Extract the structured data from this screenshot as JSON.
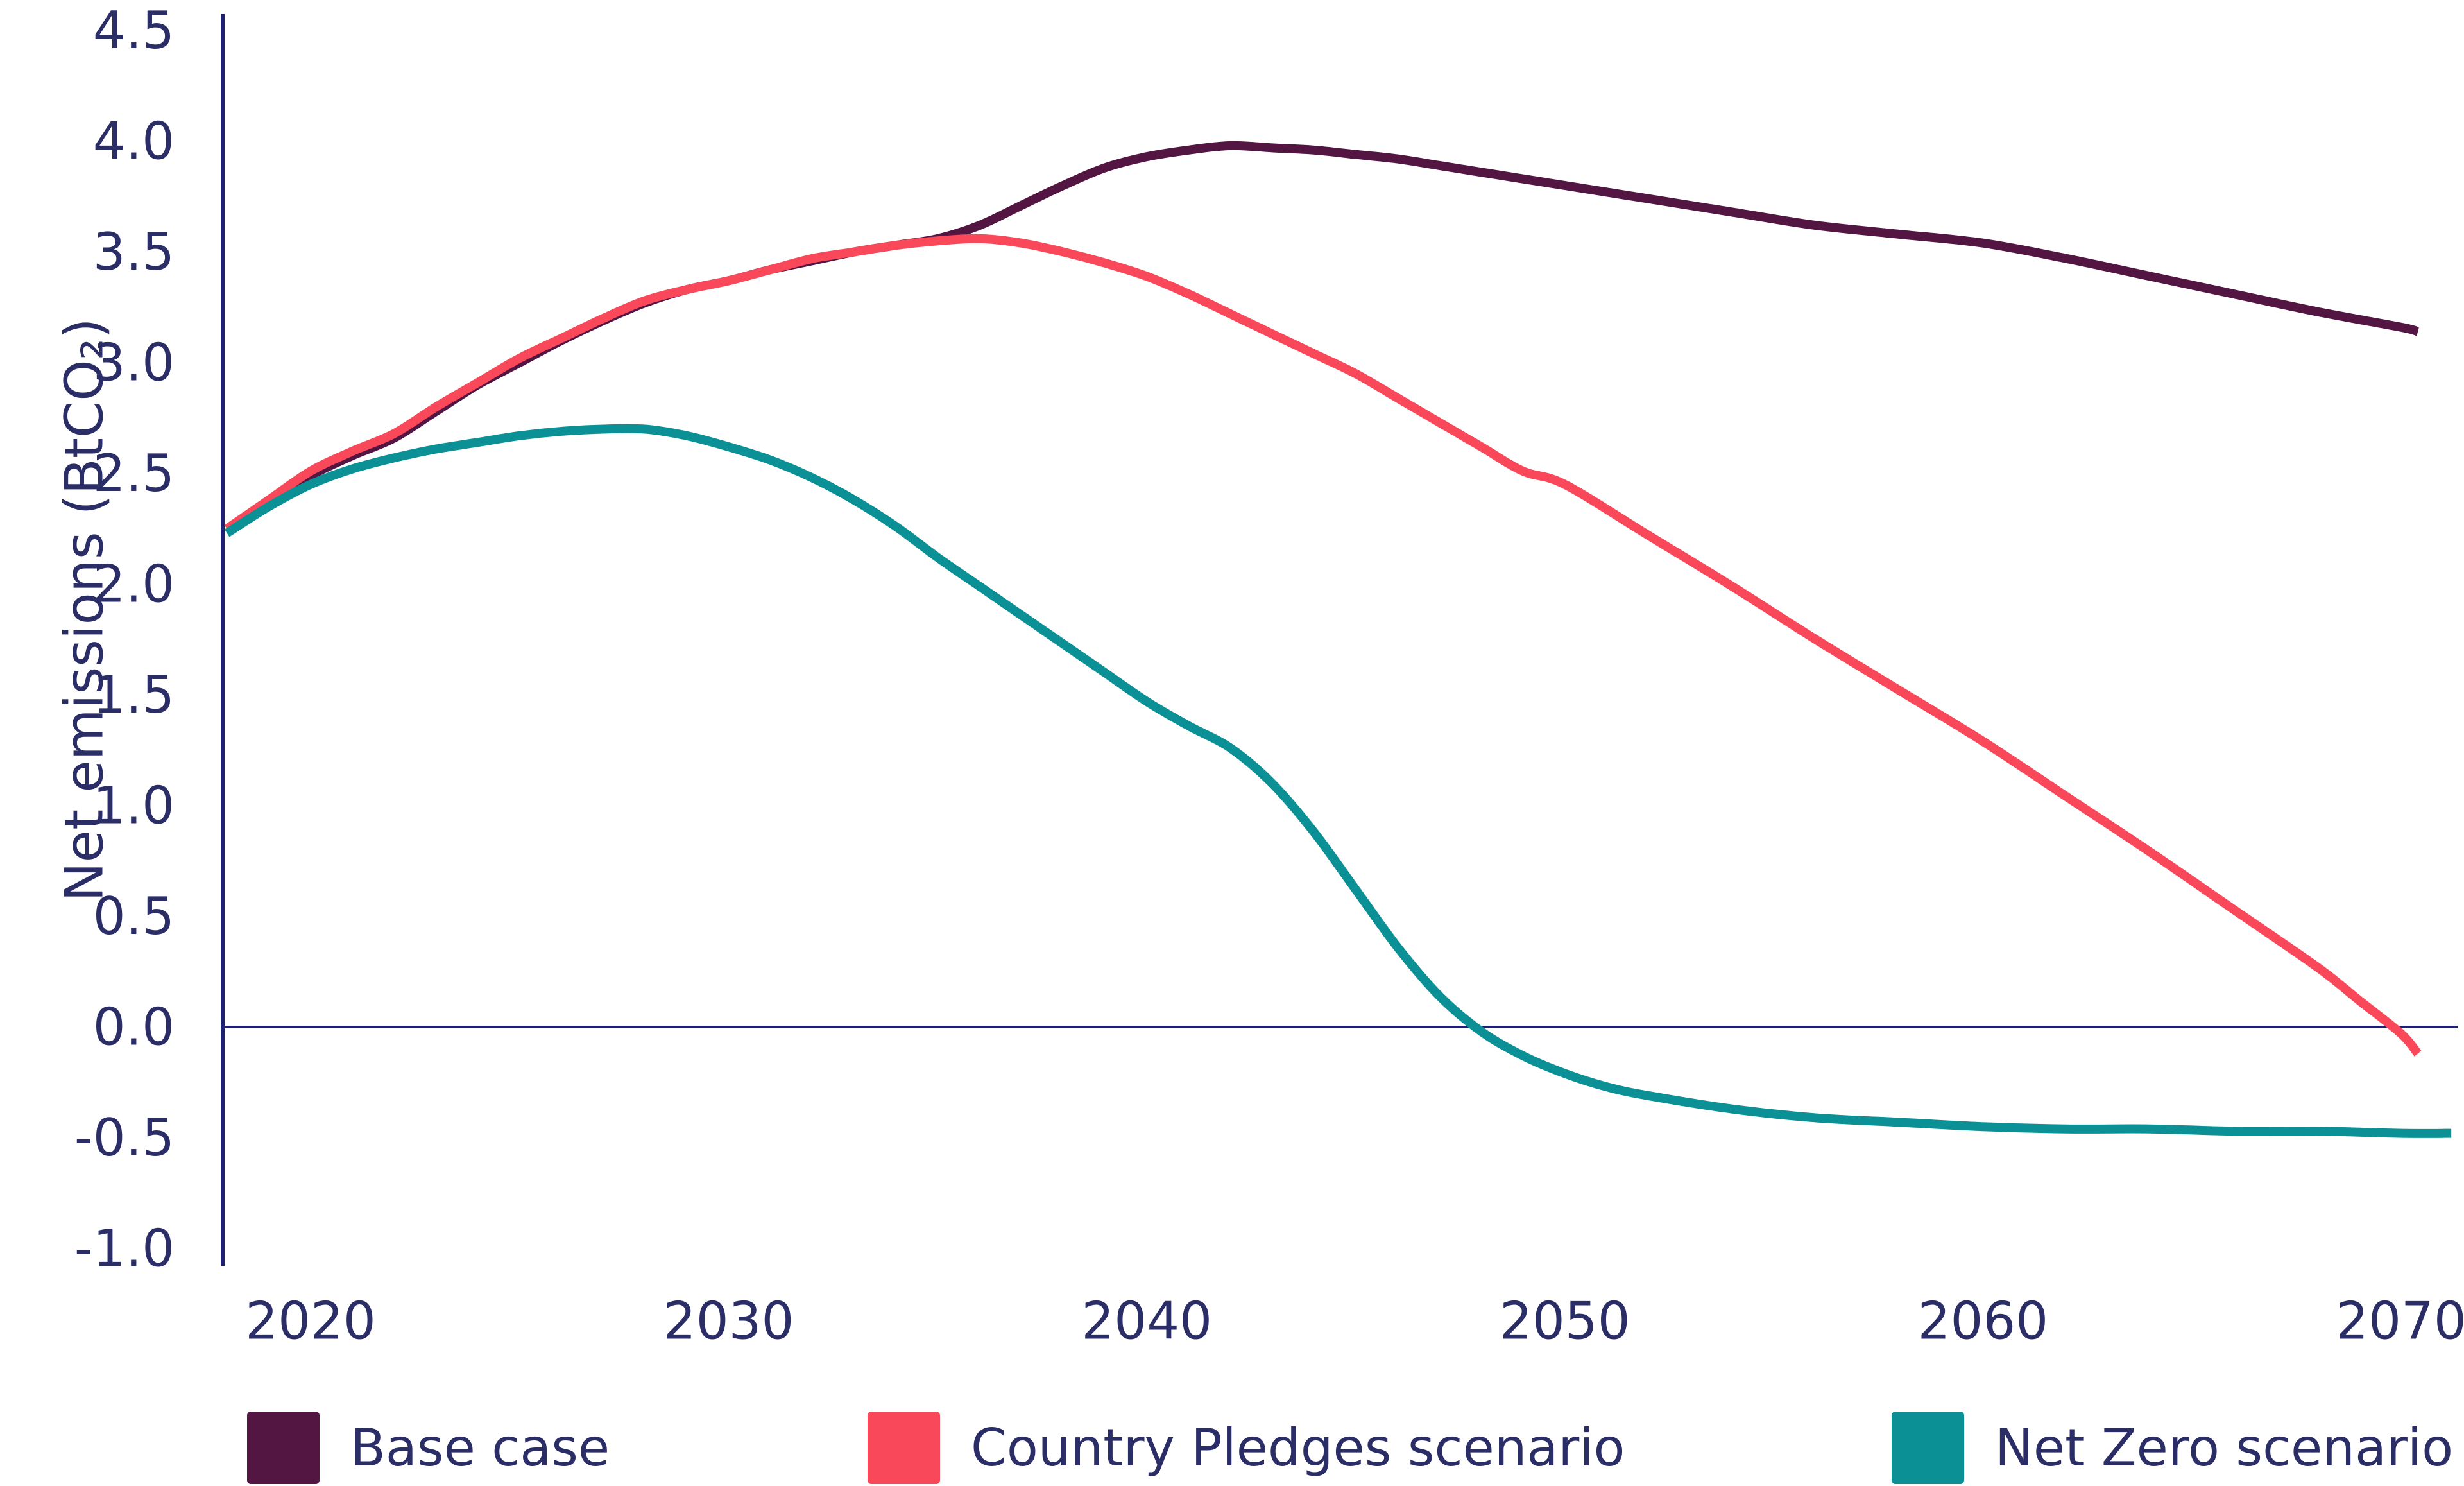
{
  "chart_data": {
    "type": "line",
    "title": "",
    "xlabel": "",
    "ylabel": "Net emissions (BtCO₂)",
    "ylim": [
      -1.0,
      4.5
    ],
    "xlim": [
      2017.9,
      2071.3
    ],
    "grid": false,
    "zero_line": true,
    "legend_position": "bottom",
    "axis_color": "#1e216e",
    "text_color": "#2b2d66",
    "y_ticks": [
      "4.5",
      "4.0",
      "3.5",
      "3.0",
      "2.5",
      "2.0",
      "1.5",
      "1.0",
      "0.5",
      "0.0",
      "-0.5",
      "-1.0"
    ],
    "x_ticks": [
      "2020",
      "2030",
      "2040",
      "2050",
      "2060",
      "2070"
    ],
    "series": [
      {
        "name": "Base case",
        "color": "#531542",
        "points": [
          [
            2018,
            2.25
          ],
          [
            2019,
            2.37
          ],
          [
            2020,
            2.49
          ],
          [
            2021,
            2.58
          ],
          [
            2022,
            2.66
          ],
          [
            2023,
            2.78
          ],
          [
            2024,
            2.9
          ],
          [
            2025,
            3.0
          ],
          [
            2026,
            3.1
          ],
          [
            2027,
            3.19
          ],
          [
            2028,
            3.27
          ],
          [
            2029,
            3.33
          ],
          [
            2030,
            3.37
          ],
          [
            2031,
            3.42
          ],
          [
            2032,
            3.46
          ],
          [
            2033,
            3.5
          ],
          [
            2034,
            3.53
          ],
          [
            2035,
            3.56
          ],
          [
            2036,
            3.62
          ],
          [
            2037,
            3.71
          ],
          [
            2038,
            3.8
          ],
          [
            2039,
            3.88
          ],
          [
            2040,
            3.93
          ],
          [
            2041,
            3.96
          ],
          [
            2042,
            3.98
          ],
          [
            2043,
            3.97
          ],
          [
            2044,
            3.96
          ],
          [
            2045,
            3.94
          ],
          [
            2046,
            3.92
          ],
          [
            2047,
            3.89
          ],
          [
            2048,
            3.86
          ],
          [
            2049,
            3.83
          ],
          [
            2050,
            3.8
          ],
          [
            2052,
            3.74
          ],
          [
            2054,
            3.68
          ],
          [
            2056,
            3.62
          ],
          [
            2058,
            3.58
          ],
          [
            2060,
            3.54
          ],
          [
            2062,
            3.47
          ],
          [
            2064,
            3.39
          ],
          [
            2066,
            3.31
          ],
          [
            2068,
            3.23
          ],
          [
            2070,
            3.16
          ],
          [
            2070.4,
            3.14
          ]
        ]
      },
      {
        "name": "Country Pledges scenario",
        "color": "#f8485a",
        "points": [
          [
            2018,
            2.25
          ],
          [
            2019,
            2.38
          ],
          [
            2020,
            2.51
          ],
          [
            2021,
            2.6
          ],
          [
            2022,
            2.68
          ],
          [
            2023,
            2.8
          ],
          [
            2024,
            2.91
          ],
          [
            2025,
            3.02
          ],
          [
            2026,
            3.11
          ],
          [
            2027,
            3.2
          ],
          [
            2028,
            3.28
          ],
          [
            2029,
            3.33
          ],
          [
            2030,
            3.37
          ],
          [
            2031,
            3.42
          ],
          [
            2032,
            3.47
          ],
          [
            2033,
            3.5
          ],
          [
            2034,
            3.53
          ],
          [
            2035,
            3.55
          ],
          [
            2036,
            3.56
          ],
          [
            2037,
            3.54
          ],
          [
            2038,
            3.5
          ],
          [
            2039,
            3.45
          ],
          [
            2040,
            3.39
          ],
          [
            2041,
            3.31
          ],
          [
            2042,
            3.22
          ],
          [
            2043,
            3.13
          ],
          [
            2044,
            3.04
          ],
          [
            2045,
            2.95
          ],
          [
            2046,
            2.84
          ],
          [
            2047,
            2.73
          ],
          [
            2048,
            2.62
          ],
          [
            2049,
            2.51
          ],
          [
            2050,
            2.45
          ],
          [
            2052,
            2.22
          ],
          [
            2054,
            1.99
          ],
          [
            2056,
            1.75
          ],
          [
            2058,
            1.52
          ],
          [
            2060,
            1.29
          ],
          [
            2062,
            1.04
          ],
          [
            2064,
            0.79
          ],
          [
            2066,
            0.53
          ],
          [
            2068,
            0.27
          ],
          [
            2069,
            0.12
          ],
          [
            2070,
            -0.03
          ],
          [
            2070.4,
            -0.12
          ]
        ]
      },
      {
        "name": "Net Zero scenario",
        "color": "#0b9096",
        "points": [
          [
            2018,
            2.23
          ],
          [
            2019,
            2.35
          ],
          [
            2020,
            2.45
          ],
          [
            2021,
            2.52
          ],
          [
            2022,
            2.57
          ],
          [
            2023,
            2.61
          ],
          [
            2024,
            2.64
          ],
          [
            2025,
            2.67
          ],
          [
            2026,
            2.69
          ],
          [
            2027,
            2.7
          ],
          [
            2028,
            2.7
          ],
          [
            2029,
            2.67
          ],
          [
            2030,
            2.62
          ],
          [
            2031,
            2.56
          ],
          [
            2032,
            2.48
          ],
          [
            2033,
            2.38
          ],
          [
            2034,
            2.26
          ],
          [
            2035,
            2.12
          ],
          [
            2036,
            1.99
          ],
          [
            2037,
            1.86
          ],
          [
            2038,
            1.73
          ],
          [
            2039,
            1.6
          ],
          [
            2040,
            1.47
          ],
          [
            2041,
            1.36
          ],
          [
            2042,
            1.26
          ],
          [
            2043,
            1.1
          ],
          [
            2044,
            0.88
          ],
          [
            2045,
            0.62
          ],
          [
            2046,
            0.36
          ],
          [
            2047,
            0.14
          ],
          [
            2048,
            -0.02
          ],
          [
            2049,
            -0.13
          ],
          [
            2050,
            -0.21
          ],
          [
            2051,
            -0.27
          ],
          [
            2052,
            -0.31
          ],
          [
            2054,
            -0.37
          ],
          [
            2056,
            -0.41
          ],
          [
            2058,
            -0.43
          ],
          [
            2060,
            -0.45
          ],
          [
            2062,
            -0.46
          ],
          [
            2064,
            -0.46
          ],
          [
            2066,
            -0.47
          ],
          [
            2068,
            -0.47
          ],
          [
            2070,
            -0.48
          ],
          [
            2071.2,
            -0.48
          ]
        ]
      }
    ]
  }
}
